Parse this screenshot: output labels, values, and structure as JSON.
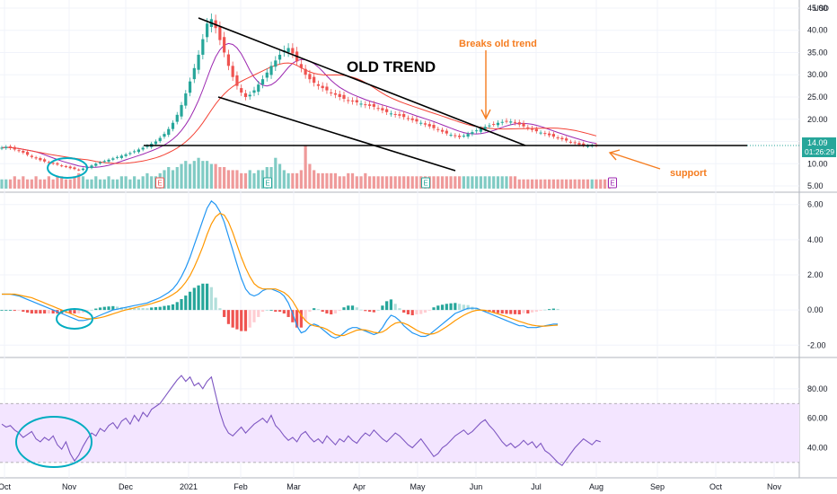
{
  "currency_label": "USD",
  "price_badge": {
    "price": "14.09",
    "countdown": "01:26:29"
  },
  "annotations": {
    "old_trend": "OLD TREND",
    "breaks_old_trend": "Breaks old trend",
    "support": "support"
  },
  "earnings_label": "E",
  "colors": {
    "up": "#26a69a",
    "down": "#ef5350",
    "vol_up": "#80cbc4",
    "vol_down": "#ef9a9a",
    "ma_fast": "#9c27b0",
    "ma_slow": "#f44336",
    "macd": "#2196f3",
    "signal": "#ff9800",
    "rsi": "#7e57c2",
    "rsi_band": "#f3e5ff",
    "annotation_orange": "#f57c1f",
    "circle": "#00acc1"
  },
  "chart_data": [
    {
      "type": "candlestick",
      "name": "price",
      "x_ticks": [
        "Oct",
        "Nov",
        "Dec",
        "2021",
        "Feb",
        "Mar",
        "Apr",
        "May",
        "Jun",
        "Jul",
        "Aug",
        "Sep",
        "Oct",
        "Nov"
      ],
      "y_ticks": [
        "5.00",
        "10.00",
        "15.00",
        "20.00",
        "25.00",
        "30.00",
        "35.00",
        "40.00",
        "45.00"
      ],
      "ylim": [
        4,
        46
      ],
      "closes": [
        13.6,
        13.8,
        13.5,
        13.2,
        12.9,
        12.5,
        12.0,
        11.5,
        11.2,
        10.8,
        10.5,
        10.2,
        10.0,
        9.8,
        9.5,
        9.3,
        9.0,
        8.8,
        8.6,
        8.9,
        9.2,
        9.6,
        10.0,
        10.3,
        10.6,
        10.9,
        11.2,
        11.5,
        11.8,
        12.1,
        12.4,
        12.8,
        13.2,
        13.6,
        14.0,
        14.5,
        15.0,
        15.8,
        16.7,
        17.8,
        19.2,
        21.0,
        23.2,
        25.8,
        28.5,
        31.5,
        34.5,
        38.0,
        41.5,
        42.5,
        40.5,
        37.8,
        35.0,
        32.0,
        29.5,
        27.5,
        26.0,
        25.0,
        25.5,
        26.5,
        27.8,
        29.0,
        30.5,
        32.0,
        33.2,
        34.5,
        35.5,
        36.0,
        34.8,
        33.0,
        31.5,
        30.0,
        29.0,
        28.2,
        27.5,
        27.0,
        26.5,
        26.0,
        25.5,
        25.0,
        24.6,
        24.2,
        24.0,
        23.8,
        23.5,
        23.2,
        23.0,
        22.8,
        22.5,
        22.0,
        21.6,
        21.3,
        21.0,
        20.8,
        20.5,
        20.2,
        19.8,
        19.5,
        19.2,
        18.8,
        18.4,
        18.0,
        17.6,
        17.2,
        16.8,
        16.5,
        16.2,
        16.0,
        16.3,
        16.7,
        17.1,
        17.5,
        17.9,
        18.3,
        18.6,
        18.9,
        19.2,
        19.4,
        19.6,
        19.5,
        19.2,
        18.8,
        18.4,
        18.0,
        17.6,
        17.3,
        17.0,
        16.7,
        16.4,
        16.1,
        15.8,
        15.5,
        15.2,
        14.9,
        14.6,
        14.3,
        14.1,
        14.0,
        14.1,
        14.09
      ],
      "volume": [
        3,
        3,
        3,
        4,
        3,
        4,
        3,
        3,
        4,
        3,
        3,
        4,
        3,
        4,
        4,
        3,
        3,
        4,
        5,
        4,
        3,
        3,
        4,
        3,
        3,
        4,
        3,
        3,
        4,
        4,
        3,
        4,
        3,
        4,
        5,
        4,
        4,
        5,
        6,
        7,
        6,
        7,
        8,
        9,
        8,
        9,
        10,
        9,
        9,
        8,
        8,
        7,
        7,
        6,
        6,
        6,
        5,
        5,
        6,
        5,
        6,
        6,
        7,
        7,
        10,
        8,
        6,
        5,
        5,
        5,
        6,
        14,
        8,
        6,
        5,
        5,
        5,
        5,
        5,
        4,
        4,
        5,
        5,
        4,
        4,
        5,
        4,
        4,
        4,
        4,
        4,
        4,
        4,
        4,
        4,
        4,
        4,
        4,
        4,
        4,
        4,
        4,
        4,
        4,
        4,
        4,
        4,
        4,
        4,
        4,
        4,
        4,
        4,
        4,
        4,
        4,
        4,
        4,
        4,
        4,
        4,
        3,
        3,
        3,
        3,
        3,
        3,
        3,
        3,
        3,
        3,
        3,
        3,
        3,
        3,
        3,
        3,
        3,
        3,
        3,
        3,
        3,
        3
      ],
      "support_level": 13.3
    },
    {
      "type": "histogram+line",
      "name": "MACD",
      "y_ticks": [
        "6.00",
        "4.00",
        "2.00",
        "0.00",
        "-2.00"
      ],
      "ylim": [
        -2.6,
        6.6
      ],
      "macd": [
        0.9,
        0.9,
        0.9,
        0.85,
        0.8,
        0.7,
        0.6,
        0.5,
        0.4,
        0.3,
        0.2,
        0.1,
        0.0,
        -0.1,
        -0.2,
        -0.3,
        -0.4,
        -0.5,
        -0.6,
        -0.6,
        -0.55,
        -0.5,
        -0.4,
        -0.3,
        -0.2,
        -0.1,
        0.0,
        0.05,
        0.1,
        0.15,
        0.2,
        0.25,
        0.3,
        0.35,
        0.4,
        0.5,
        0.6,
        0.7,
        0.85,
        1.0,
        1.2,
        1.5,
        1.9,
        2.4,
        3.0,
        3.7,
        4.4,
        5.1,
        5.8,
        6.2,
        6.0,
        5.6,
        5.0,
        4.2,
        3.4,
        2.6,
        1.8,
        1.2,
        0.9,
        0.8,
        0.9,
        1.1,
        1.2,
        1.2,
        1.1,
        1.0,
        0.8,
        0.4,
        -0.2,
        -0.9,
        -1.3,
        -1.2,
        -0.9,
        -0.8,
        -0.9,
        -1.1,
        -1.3,
        -1.5,
        -1.6,
        -1.5,
        -1.3,
        -1.1,
        -1.0,
        -1.0,
        -1.1,
        -1.2,
        -1.3,
        -1.4,
        -1.3,
        -1.0,
        -0.6,
        -0.3,
        -0.4,
        -0.6,
        -0.9,
        -1.1,
        -1.3,
        -1.4,
        -1.5,
        -1.5,
        -1.4,
        -1.2,
        -1.0,
        -0.8,
        -0.6,
        -0.4,
        -0.2,
        -0.1,
        0.0,
        0.1,
        0.1,
        0.1,
        0.0,
        -0.1,
        -0.2,
        -0.3,
        -0.4,
        -0.5,
        -0.6,
        -0.7,
        -0.8,
        -0.9,
        -0.9,
        -1.0,
        -1.0,
        -1.0,
        -0.95,
        -0.9,
        -0.85,
        -0.8,
        -0.8
      ],
      "signal": [
        0.9,
        0.9,
        0.9,
        0.9,
        0.85,
        0.8,
        0.75,
        0.7,
        0.6,
        0.5,
        0.4,
        0.3,
        0.2,
        0.1,
        0.0,
        -0.1,
        -0.2,
        -0.3,
        -0.4,
        -0.45,
        -0.5,
        -0.5,
        -0.48,
        -0.44,
        -0.38,
        -0.3,
        -0.22,
        -0.14,
        -0.06,
        0.0,
        0.06,
        0.12,
        0.18,
        0.24,
        0.3,
        0.36,
        0.44,
        0.52,
        0.62,
        0.74,
        0.88,
        1.05,
        1.28,
        1.58,
        1.96,
        2.44,
        3.0,
        3.6,
        4.3,
        4.9,
        5.3,
        5.5,
        5.4,
        5.0,
        4.4,
        3.7,
        3.0,
        2.4,
        1.9,
        1.5,
        1.3,
        1.2,
        1.2,
        1.2,
        1.2,
        1.1,
        1.0,
        0.8,
        0.5,
        0.1,
        -0.3,
        -0.6,
        -0.8,
        -0.9,
        -0.95,
        -1.0,
        -1.1,
        -1.25,
        -1.4,
        -1.45,
        -1.45,
        -1.35,
        -1.25,
        -1.15,
        -1.12,
        -1.14,
        -1.2,
        -1.27,
        -1.3,
        -1.25,
        -1.1,
        -0.9,
        -0.75,
        -0.7,
        -0.75,
        -0.85,
        -1.0,
        -1.15,
        -1.27,
        -1.35,
        -1.38,
        -1.35,
        -1.25,
        -1.1,
        -0.95,
        -0.78,
        -0.6,
        -0.45,
        -0.3,
        -0.18,
        -0.08,
        -0.02,
        0.0,
        -0.02,
        -0.08,
        -0.15,
        -0.22,
        -0.3,
        -0.38,
        -0.47,
        -0.56,
        -0.65,
        -0.72,
        -0.8,
        -0.86,
        -0.9,
        -0.92,
        -0.92,
        -0.9,
        -0.88,
        -0.86
      ]
    },
    {
      "type": "line",
      "name": "RSI",
      "y_ticks": [
        "80.00",
        "60.00",
        "40.00"
      ],
      "ylim": [
        22,
        100
      ],
      "band": [
        30,
        70
      ],
      "values": [
        56,
        54,
        55,
        52,
        50,
        47,
        49,
        51,
        46,
        44,
        47,
        45,
        48,
        42,
        39,
        44,
        36,
        31,
        35,
        41,
        46,
        50,
        48,
        53,
        51,
        55,
        57,
        53,
        58,
        60,
        56,
        62,
        58,
        64,
        61,
        66,
        68,
        70,
        74,
        78,
        82,
        86,
        89,
        85,
        88,
        82,
        84,
        80,
        85,
        88,
        76,
        64,
        55,
        50,
        48,
        51,
        54,
        50,
        53,
        56,
        58,
        60,
        57,
        62,
        55,
        52,
        48,
        45,
        47,
        44,
        49,
        51,
        47,
        44,
        46,
        43,
        48,
        45,
        42,
        46,
        44,
        48,
        45,
        43,
        47,
        50,
        48,
        52,
        49,
        46,
        44,
        47,
        50,
        48,
        45,
        42,
        40,
        43,
        46,
        42,
        38,
        34,
        36,
        40,
        42,
        45,
        48,
        50,
        52,
        49,
        51,
        54,
        57,
        59,
        55,
        52,
        48,
        44,
        41,
        43,
        40,
        42,
        45,
        42,
        44,
        40,
        43,
        38,
        36,
        33,
        30,
        28,
        32,
        36,
        40,
        43,
        46,
        44,
        42,
        45,
        44
      ]
    }
  ]
}
